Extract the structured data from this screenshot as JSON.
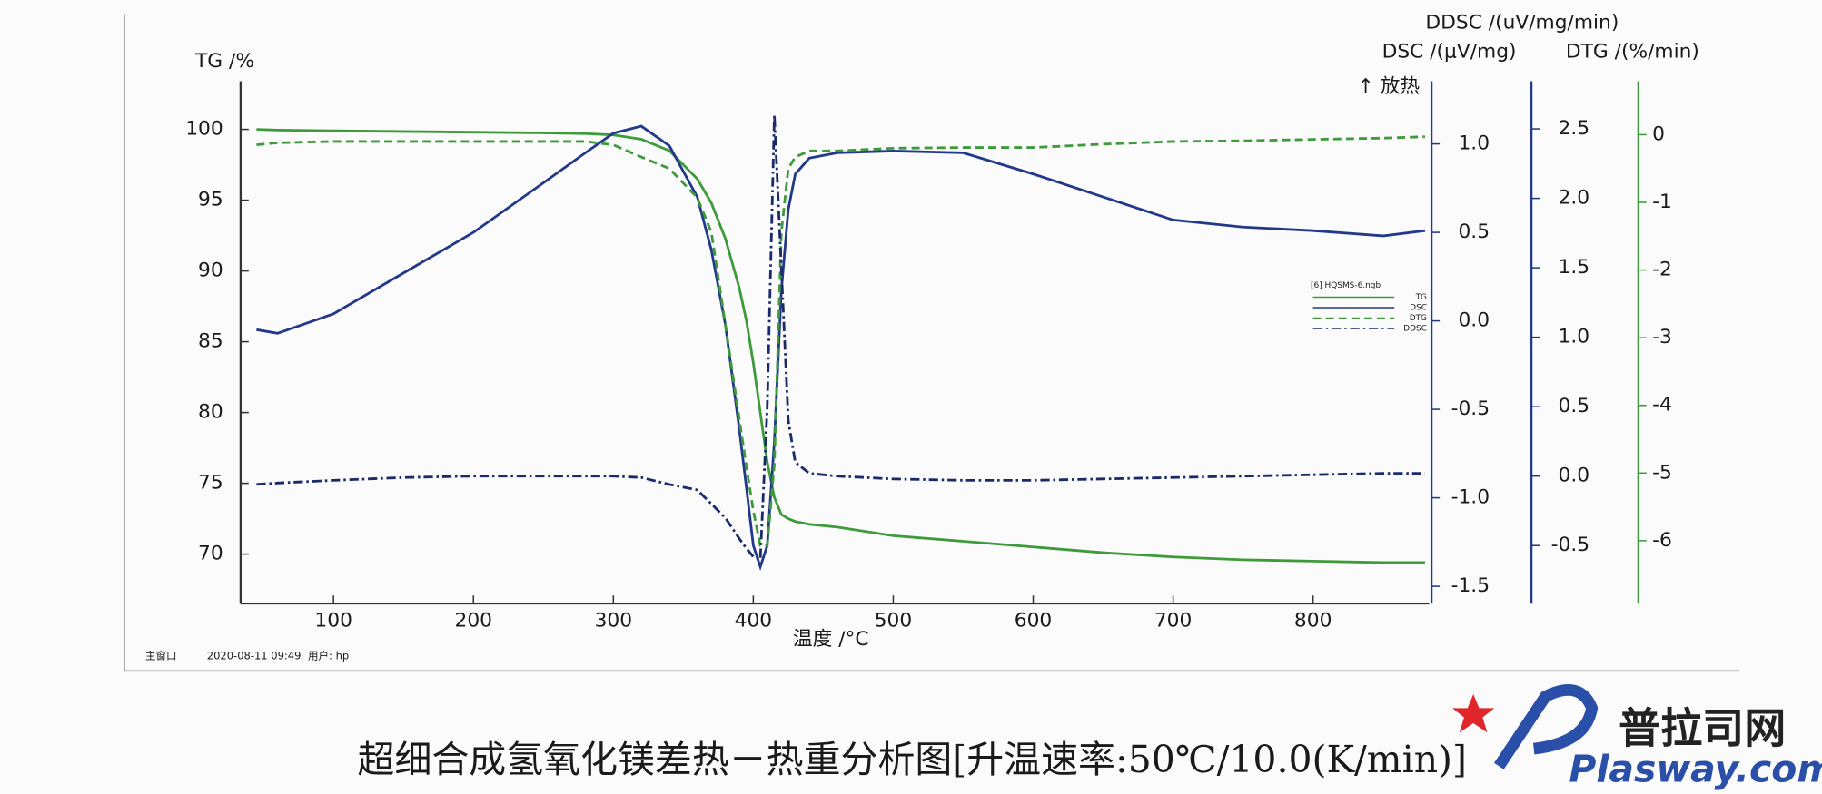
{
  "chart_data": {
    "type": "line",
    "ylabel": "TG /%",
    "y2label": "DSC /(μV/mg)",
    "y3label": "DDSC /(uV/mg/min)",
    "y4label": "DTG /(%/min)",
    "y2note": "↑ 放热",
    "xlabel": "温度 /°C",
    "legend_title": "[6] HQSMS-6.ngb",
    "xlim": [
      33.6,
      883
    ],
    "xticks": [
      100,
      200,
      300,
      400,
      500,
      600,
      700,
      800
    ],
    "ylim": [
      66.5,
      103.4
    ],
    "yticks": [
      70,
      75,
      80,
      85,
      90,
      95,
      100
    ],
    "y2lim": [
      -1.598,
      1.354
    ],
    "y2ticks": [
      {
        "value": 1,
        "label": "1.0"
      },
      0.5,
      {
        "value": 0,
        "label": "0.0"
      },
      -0.5,
      {
        "value": -1,
        "label": "-1.0"
      },
      -1.5
    ],
    "y3lim": [
      -0.918,
      2.843
    ],
    "y3ticks": [
      2.5,
      {
        "value": 2,
        "label": "2.0"
      },
      1.5,
      {
        "value": 1,
        "label": "1.0"
      },
      0.5,
      {
        "value": 0,
        "label": "0.0"
      },
      -0.5
    ],
    "y4lim": [
      -6.93,
      0.79
    ],
    "y4ticks": [
      0,
      -1,
      -2,
      -3,
      -4,
      -5,
      -6
    ],
    "x": [
      45,
      60,
      100,
      150,
      200,
      250,
      280,
      300,
      320,
      340,
      360,
      370,
      380,
      390,
      395,
      400,
      405,
      410,
      415,
      420,
      425,
      430,
      440,
      460,
      500,
      550,
      600,
      650,
      700,
      750,
      800,
      850,
      880
    ],
    "series": [
      {
        "name": "TG",
        "color": "#3e9a3a",
        "dash": "none",
        "values": [
          100,
          99.95,
          99.9,
          99.85,
          99.8,
          99.75,
          99.7,
          99.6,
          99.3,
          98.5,
          96.5,
          94.8,
          92.3,
          88.8,
          86.5,
          83.5,
          80,
          76.5,
          74,
          72.8,
          72.5,
          72.3,
          72.1,
          71.9,
          71.3,
          70.9,
          70.5,
          70.1,
          69.8,
          69.6,
          69.5,
          69.4,
          69.4
        ]
      },
      {
        "name": "DSC",
        "color": "#22398a",
        "dash": "none",
        "axis": "y2",
        "values": [
          -0.05,
          -0.07,
          0.04,
          0.27,
          0.5,
          0.78,
          0.95,
          1.06,
          1.1,
          0.99,
          0.7,
          0.4,
          -0.02,
          -0.61,
          -0.94,
          -1.27,
          -1.39,
          -1.27,
          -0.68,
          0.17,
          0.63,
          0.83,
          0.92,
          0.95,
          0.96,
          0.95,
          0.83,
          0.7,
          0.57,
          0.53,
          0.51,
          0.48,
          0.51
        ]
      },
      {
        "name": "DTG",
        "color": "#3e9a3a",
        "dash": "7,4",
        "axis": "y4",
        "values": [
          -0.15,
          -0.12,
          -0.1,
          -0.1,
          -0.1,
          -0.1,
          -0.1,
          -0.15,
          -0.33,
          -0.5,
          -0.93,
          -1.44,
          -2.8,
          -4.2,
          -4.9,
          -5.56,
          -6.07,
          -6.07,
          -4.87,
          -1.44,
          -0.5,
          -0.33,
          -0.24,
          -0.24,
          -0.2,
          -0.19,
          -0.19,
          -0.14,
          -0.1,
          -0.09,
          -0.07,
          -0.05,
          -0.03
        ]
      },
      {
        "name": "DDSC",
        "color": "#1a2a6a",
        "dash": "8,3,2,3",
        "axis": "y3",
        "values": [
          -0.06,
          -0.05,
          -0.03,
          -0.01,
          0,
          0,
          0,
          0,
          -0.01,
          -0.06,
          -0.1,
          -0.2,
          -0.3,
          -0.45,
          -0.52,
          -0.58,
          -0.6,
          0.5,
          2.6,
          1.5,
          0.4,
          0.1,
          0.02,
          0,
          -0.02,
          -0.03,
          -0.03,
          -0.02,
          -0.01,
          0,
          0.01,
          0.02,
          0.02
        ]
      }
    ]
  },
  "footer": [
    "主窗口",
    "2020-08-11 09:49",
    "用户: hp"
  ],
  "caption": "超细合成氢氧化镁差热－热重分析图[升温速率:50℃/10.0(K/min)]",
  "watermark": [
    "普拉司网",
    "Plasway.com"
  ]
}
